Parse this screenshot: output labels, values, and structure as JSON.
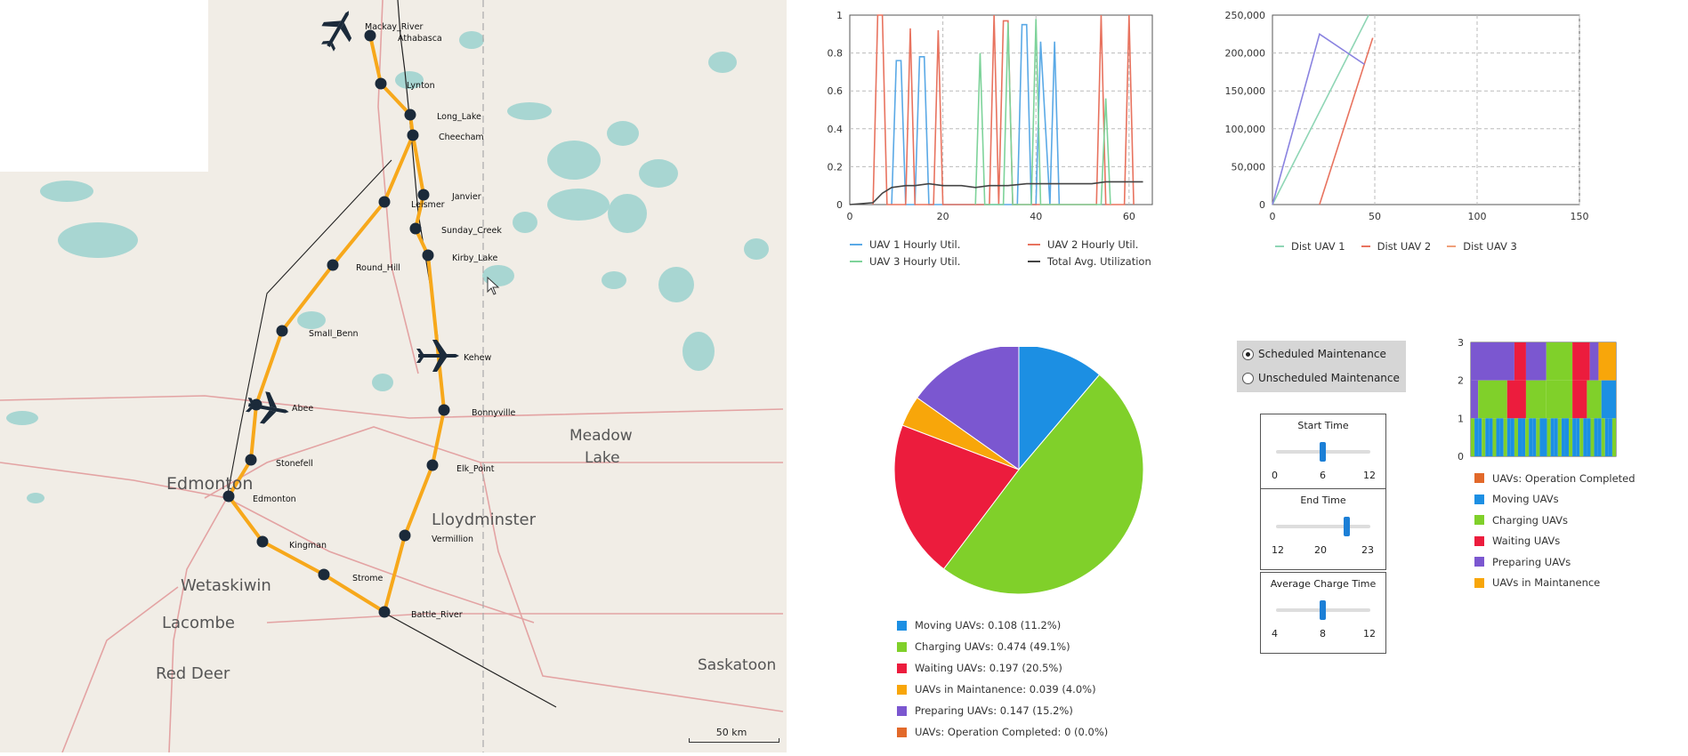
{
  "map": {
    "towns": [
      {
        "id": "mackay",
        "label": "Mackay_River"
      },
      {
        "id": "athabasca",
        "label": "Athabasca"
      },
      {
        "id": "lynton",
        "label": "Lynton"
      },
      {
        "id": "longlake",
        "label": "Long_Lake"
      },
      {
        "id": "cheecham",
        "label": "Cheecham"
      },
      {
        "id": "janvier",
        "label": "Janvier"
      },
      {
        "id": "leismer",
        "label": "Leismer"
      },
      {
        "id": "sunday",
        "label": "Sunday_Creek"
      },
      {
        "id": "kirby",
        "label": "Kirby_Lake"
      },
      {
        "id": "roundhill",
        "label": "Round_Hill"
      },
      {
        "id": "smallbenn",
        "label": "Small_Benn"
      },
      {
        "id": "kehew",
        "label": "Kehew"
      },
      {
        "id": "abee",
        "label": "Abee"
      },
      {
        "id": "bonnyville",
        "label": "Bonnyville"
      },
      {
        "id": "stonefell",
        "label": "Stonefell"
      },
      {
        "id": "elkpoint",
        "label": "Elk_Point"
      },
      {
        "id": "edmonton",
        "label": "Edmonton"
      },
      {
        "id": "vermillion",
        "label": "Vermillion"
      },
      {
        "id": "kingman",
        "label": "Kingman"
      },
      {
        "id": "strome",
        "label": "Strome"
      },
      {
        "id": "battle",
        "label": "Battle_River"
      }
    ],
    "places": [
      {
        "id": "edmonton_city",
        "label": "Edmonton"
      },
      {
        "id": "meadow1",
        "label": "Meadow"
      },
      {
        "id": "meadow2",
        "label": "Lake"
      },
      {
        "id": "lloyd",
        "label": "Lloydminster"
      },
      {
        "id": "wetaskiwin",
        "label": "Wetaskiwin"
      },
      {
        "id": "lacombe",
        "label": "Lacombe"
      },
      {
        "id": "reddeer",
        "label": "Red Deer"
      },
      {
        "id": "saskatoon",
        "label": "Saskatoon"
      }
    ],
    "scale_label": "50 km",
    "colors": {
      "route": "#f7a81b",
      "node": "#1b2a3a",
      "road": "#e3a3a3",
      "water": "#a8d6d2",
      "plane": "#1b2a3a"
    }
  },
  "chart_data": [
    {
      "type": "line",
      "id": "utilization",
      "ylim": [
        0,
        1
      ],
      "xlim": [
        0,
        65
      ],
      "xticks": [
        "0",
        "20",
        "40",
        "60"
      ],
      "yticks": [
        "0",
        "0.2",
        "0.4",
        "0.6",
        "0.8",
        "1"
      ],
      "grid": true,
      "series": [
        {
          "name": "UAV 1 Hourly Util.",
          "color": "#5aa9e6",
          "x": [
            9,
            10,
            11,
            12,
            14,
            15,
            16,
            17,
            36,
            37,
            38,
            39,
            40,
            41,
            43,
            44,
            45
          ],
          "y": [
            0,
            0.76,
            0.76,
            0,
            0,
            0.78,
            0.78,
            0,
            0,
            0.95,
            0.95,
            0,
            0,
            0.86,
            0,
            0.86,
            0
          ]
        },
        {
          "name": "UAV 2 Hourly Util.",
          "color": "#e8735f",
          "x": [
            5,
            6,
            7,
            8,
            12,
            13,
            14,
            18,
            19,
            20,
            30,
            31,
            32,
            33,
            34,
            35,
            53,
            54,
            55,
            59,
            60,
            61
          ],
          "y": [
            0,
            1,
            1,
            0,
            0,
            0.93,
            0,
            0,
            0.92,
            0,
            0,
            1,
            0,
            0.97,
            0.97,
            0,
            0,
            1,
            0,
            0,
            1,
            0
          ]
        },
        {
          "name": "UAV 3 Hourly Util.",
          "color": "#7ed39a",
          "x": [
            27,
            28,
            29,
            33,
            34,
            35,
            39,
            40,
            41,
            54,
            55,
            56
          ],
          "y": [
            0,
            0.8,
            0,
            0,
            0.96,
            0,
            0,
            0.98,
            0,
            0,
            0.56,
            0
          ]
        },
        {
          "name": "Total Avg. Utilization",
          "color": "#444444",
          "x": [
            0,
            5,
            7,
            9,
            12,
            14,
            17,
            20,
            24,
            27,
            30,
            34,
            38,
            40,
            44,
            48,
            52,
            55,
            60,
            63
          ],
          "y": [
            0,
            0.01,
            0.06,
            0.09,
            0.1,
            0.1,
            0.11,
            0.1,
            0.1,
            0.09,
            0.1,
            0.1,
            0.11,
            0.11,
            0.11,
            0.11,
            0.11,
            0.12,
            0.12,
            0.12
          ]
        }
      ]
    },
    {
      "type": "line",
      "id": "distance",
      "ylim": [
        0,
        250000
      ],
      "xlim": [
        0,
        150
      ],
      "xticks": [
        "0",
        "50",
        "100",
        "150"
      ],
      "yticks": [
        "0",
        "50,000",
        "100,000",
        "150,000",
        "200,000",
        "250,000"
      ],
      "grid": true,
      "series": [
        {
          "name": "Dist UAV 1",
          "color": "#8fd6b5",
          "x": [
            0,
            47
          ],
          "y": [
            0,
            250000
          ]
        },
        {
          "name": "Dist UAV 2",
          "color": "#e8735f",
          "x": [
            23,
            49
          ],
          "y": [
            0,
            220000
          ]
        },
        {
          "name": "Dist UAV 3",
          "color": "#f0a07a",
          "x": [
            0,
            0
          ],
          "y": [
            0,
            0
          ]
        },
        {
          "name": "",
          "color": "#8a83e0",
          "x": [
            0,
            23,
            45
          ],
          "y": [
            0,
            225000,
            185000
          ]
        }
      ]
    },
    {
      "type": "pie",
      "id": "state_pie",
      "slices": [
        {
          "label": "Moving UAVs: 0.108 (11.2%)",
          "value": 0.112,
          "color": "#1c8fe3"
        },
        {
          "label": "Charging UAVs: 0.474 (49.1%)",
          "value": 0.491,
          "color": "#80d02a"
        },
        {
          "label": "Waiting UAVs: 0.197 (20.5%)",
          "value": 0.205,
          "color": "#ec1c3d"
        },
        {
          "label": "UAVs in Maintanence: 0.039 (4.0%)",
          "value": 0.04,
          "color": "#f8a60a"
        },
        {
          "label": "Preparing UAVs: 0.147 (15.2%)",
          "value": 0.152,
          "color": "#7b57d0"
        },
        {
          "label": "UAVs: Operation Completed: 0 (0.0%)",
          "value": 0,
          "color": "#e2692a"
        }
      ]
    },
    {
      "type": "area",
      "id": "state_timeline",
      "ylim": [
        0,
        3
      ],
      "yticks": [
        "0",
        "1",
        "2",
        "3"
      ],
      "legend": [
        {
          "label": "UAVs: Operation Completed",
          "color": "#e2692a"
        },
        {
          "label": "Moving UAVs",
          "color": "#1c8fe3"
        },
        {
          "label": "Charging UAVs",
          "color": "#80d02a"
        },
        {
          "label": "Waiting UAVs",
          "color": "#ec1c3d"
        },
        {
          "label": "Preparing UAVs",
          "color": "#7b57d0"
        },
        {
          "label": "UAVs in Maintanence",
          "color": "#f8a60a"
        }
      ]
    }
  ],
  "controls": {
    "radio": [
      {
        "label": "Scheduled Maintenance",
        "selected": true
      },
      {
        "label": "Unscheduled Maintenance",
        "selected": false
      }
    ],
    "sliders": [
      {
        "title": "Start Time",
        "min": "0",
        "max": "12",
        "value": "6",
        "pos": 0.5
      },
      {
        "title": "End Time",
        "min": "12",
        "max": "23",
        "value": "20",
        "pos": 0.75
      },
      {
        "title": "Average Charge Time",
        "min": "4",
        "max": "12",
        "value": "8",
        "pos": 0.5
      }
    ]
  }
}
